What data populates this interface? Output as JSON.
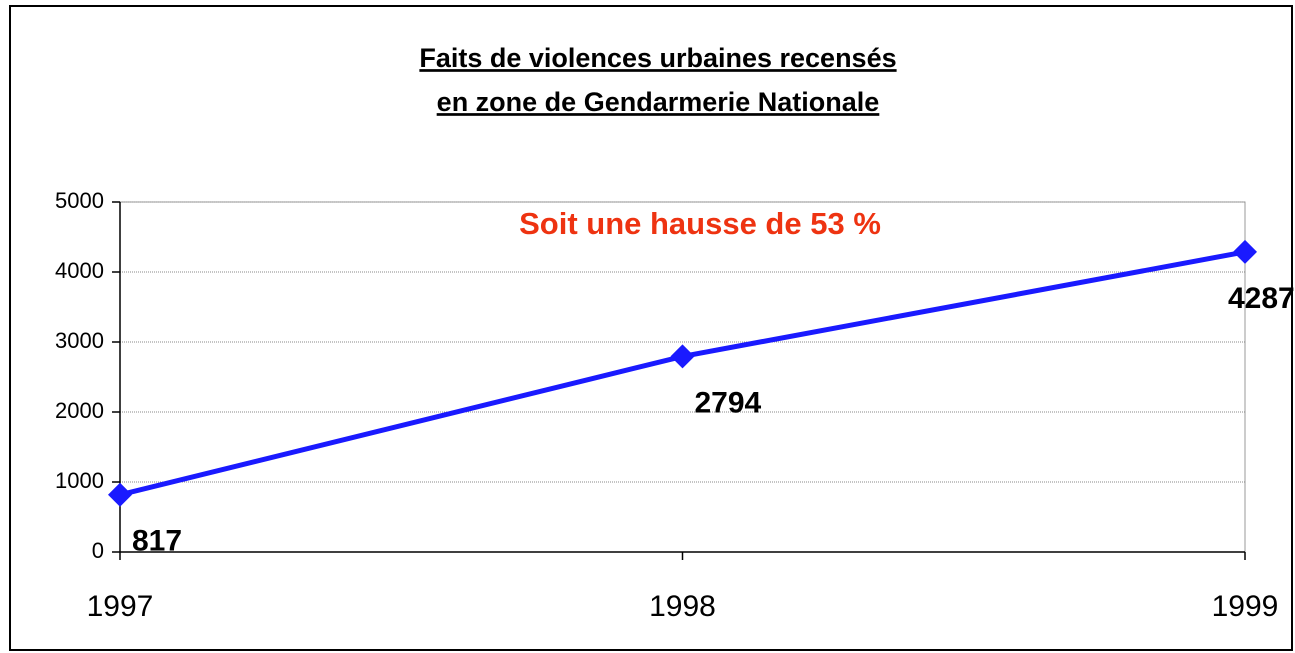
{
  "chart_data": {
    "type": "line",
    "title": [
      "Faits de violences urbaines recensés",
      "en zone de  Gendarmerie Nationale"
    ],
    "annotation": "Soit une hausse de 53 %",
    "x": [
      1997,
      1998,
      1999
    ],
    "series": [
      {
        "name": null,
        "color": "#1a1aff",
        "values": [
          817,
          2794,
          4287
        ]
      }
    ],
    "xlim": [
      1997,
      1999
    ],
    "xticks": [
      1997,
      1998,
      1999
    ],
    "ylim": [
      0,
      5000
    ],
    "yticks": [
      0,
      1000,
      2000,
      3000,
      4000,
      5000
    ],
    "grid": true
  }
}
